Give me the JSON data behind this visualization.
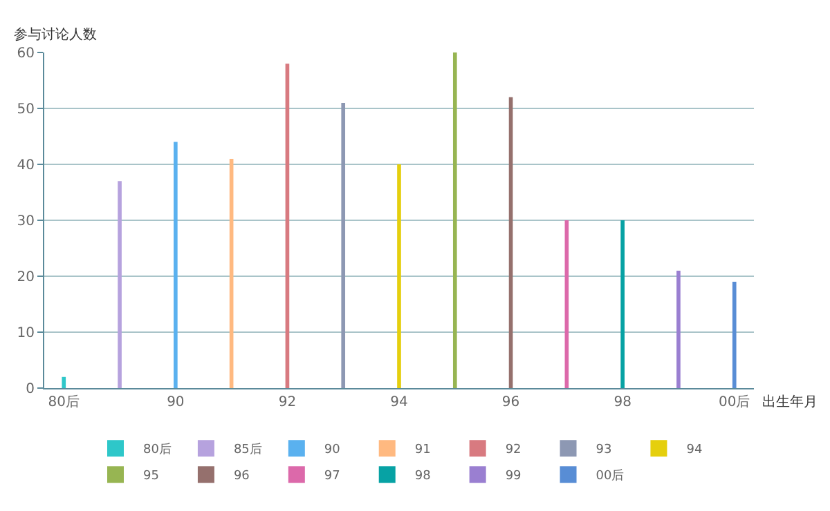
{
  "chart_data": {
    "type": "bar",
    "xlabel": "出生年月",
    "ylabel": "参与讨论人数",
    "categories": [
      "80后",
      null,
      "90",
      null,
      "92",
      null,
      "94",
      null,
      "96",
      null,
      "98",
      null,
      "00后"
    ],
    "series": [
      {
        "name": "80后",
        "color": "#2ec7c9",
        "values": [
          2,
          null,
          null,
          null,
          null,
          null,
          null,
          null,
          null,
          null,
          null,
          null,
          null
        ]
      },
      {
        "name": "85后",
        "color": "#b6a2de",
        "values": [
          null,
          37,
          null,
          null,
          null,
          null,
          null,
          null,
          null,
          null,
          null,
          null,
          null
        ]
      },
      {
        "name": "90",
        "color": "#5ab1ef",
        "values": [
          null,
          null,
          44,
          null,
          null,
          null,
          null,
          null,
          null,
          null,
          null,
          null,
          null
        ]
      },
      {
        "name": "91",
        "color": "#ffb980",
        "values": [
          null,
          null,
          null,
          41,
          null,
          null,
          null,
          null,
          null,
          null,
          null,
          null,
          null
        ]
      },
      {
        "name": "92",
        "color": "#d87a80",
        "values": [
          null,
          null,
          null,
          null,
          58,
          null,
          null,
          null,
          null,
          null,
          null,
          null,
          null
        ]
      },
      {
        "name": "93",
        "color": "#8d98b3",
        "values": [
          null,
          null,
          null,
          null,
          null,
          51,
          null,
          null,
          null,
          null,
          null,
          null,
          null
        ]
      },
      {
        "name": "94",
        "color": "#e5cf0d",
        "values": [
          null,
          null,
          null,
          null,
          null,
          null,
          40,
          null,
          null,
          null,
          null,
          null,
          null
        ]
      },
      {
        "name": "95",
        "color": "#97b552",
        "values": [
          null,
          null,
          null,
          null,
          null,
          null,
          null,
          60,
          null,
          null,
          null,
          null,
          null
        ]
      },
      {
        "name": "96",
        "color": "#95706d",
        "values": [
          null,
          null,
          null,
          null,
          null,
          null,
          null,
          null,
          52,
          null,
          null,
          null,
          null
        ]
      },
      {
        "name": "97",
        "color": "#dc69aa",
        "values": [
          null,
          null,
          null,
          null,
          null,
          null,
          null,
          null,
          null,
          30,
          null,
          null,
          null
        ]
      },
      {
        "name": "98",
        "color": "#07a2a4",
        "values": [
          null,
          null,
          null,
          null,
          null,
          null,
          null,
          null,
          null,
          null,
          30,
          null,
          null
        ]
      },
      {
        "name": "99",
        "color": "#9a7fd1",
        "values": [
          null,
          null,
          null,
          null,
          null,
          null,
          null,
          null,
          null,
          null,
          null,
          21,
          null
        ]
      },
      {
        "name": "00后",
        "color": "#588dd5",
        "values": [
          null,
          null,
          null,
          null,
          null,
          null,
          null,
          null,
          null,
          null,
          null,
          null,
          19
        ]
      }
    ],
    "ylim": [
      0,
      60
    ],
    "yticks": [
      0,
      10,
      20,
      30,
      40,
      50,
      60
    ],
    "grid": "y",
    "legend": "bottom"
  }
}
